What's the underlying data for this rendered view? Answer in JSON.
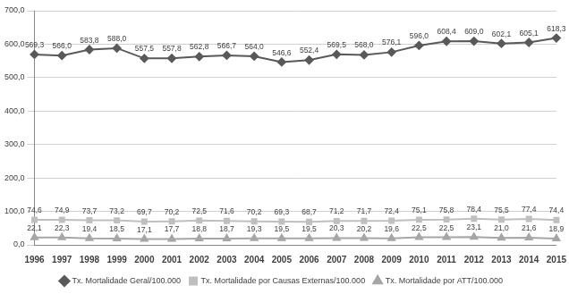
{
  "chart_data": {
    "type": "line",
    "categories": [
      "1996",
      "1997",
      "1998",
      "1999",
      "2000",
      "2001",
      "2002",
      "2003",
      "2004",
      "2005",
      "2006",
      "2007",
      "2008",
      "2009",
      "2010",
      "2011",
      "2012",
      "2013",
      "2014",
      "2015"
    ],
    "series": [
      {
        "name": "Tx. Mortalidade Geral/100.000",
        "color": "#595959",
        "marker": "diamond",
        "line_style": "solid",
        "values": [
          569.3,
          566.0,
          583.8,
          588.0,
          557.5,
          557.8,
          562.8,
          566.7,
          564.0,
          546.6,
          552.4,
          569.5,
          568.0,
          576.1,
          596.0,
          608.4,
          609.0,
          602.1,
          605.1,
          618.3
        ],
        "value_labels": [
          "569,3",
          "566,0",
          "583,8",
          "588,0",
          "557,5",
          "557,8",
          "562,8",
          "566,7",
          "564,0",
          "546,6",
          "552,4",
          "569,5",
          "568,0",
          "576,1",
          "596,0",
          "608,4",
          "609,0",
          "602,1",
          "605,1",
          "618,3"
        ]
      },
      {
        "name": "Tx. Mortalidade por Causas Externas/100.000",
        "color": "#bfbfbf",
        "marker": "square",
        "line_style": "solid",
        "values": [
          74.6,
          74.9,
          73.7,
          73.2,
          69.7,
          70.2,
          72.5,
          71.6,
          70.2,
          69.3,
          68.7,
          71.2,
          71.7,
          72.4,
          75.1,
          75.8,
          78.4,
          75.5,
          77.4,
          74.4
        ],
        "value_labels": [
          "74,6",
          "74,9",
          "73,7",
          "73,2",
          "69,7",
          "70,2",
          "72,5",
          "71,6",
          "70,2",
          "69,3",
          "68,7",
          "71,2",
          "71,7",
          "72,4",
          "75,1",
          "75,8",
          "78,4",
          "75,5",
          "77,4",
          "74,4"
        ]
      },
      {
        "name": "Tx. Mortalidade por ATT/100.000",
        "color": "#a6a6a6",
        "marker": "triangle",
        "line_style": "solid",
        "values": [
          22.1,
          22.3,
          19.4,
          18.5,
          17.1,
          17.7,
          18.8,
          18.7,
          19.3,
          19.5,
          19.5,
          20.3,
          20.2,
          19.6,
          22.5,
          22.5,
          23.1,
          21.0,
          21.6,
          18.9
        ],
        "value_labels": [
          "22,1",
          "22,3",
          "19,4",
          "18,5",
          "17,1",
          "17,7",
          "18,8",
          "18,7",
          "19,3",
          "19,5",
          "19,5",
          "20,3",
          "20,2",
          "19,6",
          "22,5",
          "22,5",
          "23,1",
          "21,0",
          "21,6",
          "18,9"
        ]
      }
    ],
    "ylim": [
      0,
      700
    ],
    "yticks": [
      {
        "value": 0,
        "label": "0,0"
      },
      {
        "value": 100,
        "label": "100,0"
      },
      {
        "value": 200,
        "label": "200,0"
      },
      {
        "value": 300,
        "label": "300,0"
      },
      {
        "value": 400,
        "label": "400,0"
      },
      {
        "value": 500,
        "label": "500,0"
      },
      {
        "value": 600,
        "label": "600,0"
      },
      {
        "value": 700,
        "label": "700,0"
      }
    ],
    "grid": true,
    "legend": "bottom",
    "data_labels": true
  }
}
